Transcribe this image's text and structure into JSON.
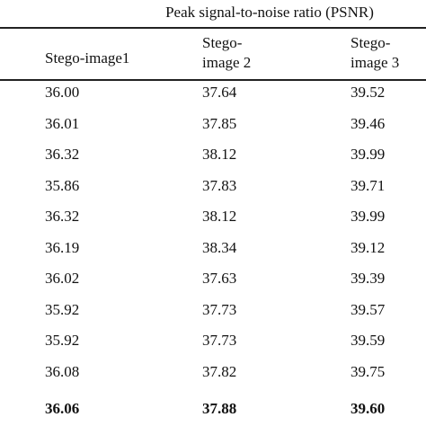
{
  "title": "Peak signal-to-noise ratio (PSNR)",
  "table": {
    "header": [
      [
        "Stego-image1"
      ],
      [
        "Stego-",
        "image 2"
      ],
      [
        "Stego-",
        "image 3"
      ]
    ],
    "rows": [
      [
        "36.00",
        "37.64",
        "39.52"
      ],
      [
        "36.01",
        "37.85",
        "39.46"
      ],
      [
        "36.32",
        "38.12",
        "39.99"
      ],
      [
        "35.86",
        "37.83",
        "39.71"
      ],
      [
        "36.32",
        "38.12",
        "39.99"
      ],
      [
        "36.19",
        "38.34",
        "39.12"
      ],
      [
        "36.02",
        "37.63",
        "39.39"
      ],
      [
        "35.92",
        "37.73",
        "39.57"
      ],
      [
        "35.92",
        "37.73",
        "39.59"
      ],
      [
        "36.08",
        "37.82",
        "39.75"
      ]
    ],
    "summary_row": [
      "36.06",
      "37.88",
      "39.60"
    ]
  }
}
